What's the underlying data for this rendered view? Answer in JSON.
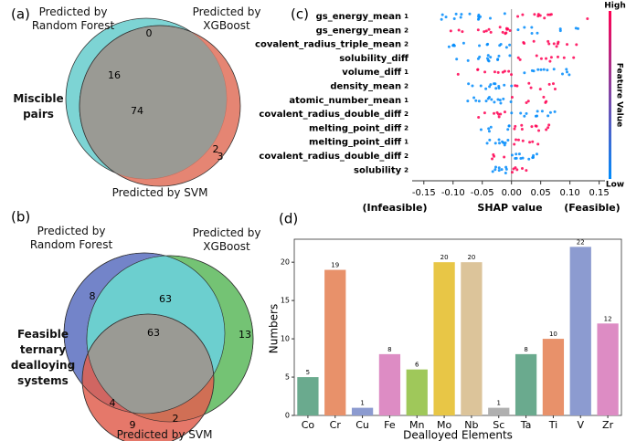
{
  "chart_data": [
    {
      "type": "venn",
      "panel_label": "(a)",
      "sets": [
        "Predicted by Random Forest",
        "Predicted by XGBoost",
        "Predicted by SVM"
      ],
      "subject": "Miscible pairs",
      "counts": [
        0,
        16,
        74,
        2,
        3
      ]
    },
    {
      "type": "venn",
      "panel_label": "(b)",
      "sets": [
        "Predicted by Random Forest",
        "Predicted by XGBoost",
        "Predicted by SVM"
      ],
      "subject": "Feasible ternary dealloying systems",
      "counts": [
        8,
        63,
        13,
        63,
        4,
        2,
        9
      ]
    },
    {
      "type": "beeswarm",
      "panel_label": "(c)",
      "features": [
        "gs_energy_mean",
        "gs_energy_mean",
        "covalent_radius_triple_mean",
        "solubility_diff",
        "volume_diff",
        "density_mean",
        "atomic_number_mean",
        "covalent_radius_double_diff",
        "melting_point_diff",
        "melting_point_diff",
        "covalent_radius_double_diff",
        "solubility"
      ],
      "feature_suffixes": [
        "1",
        "2",
        "2",
        null,
        "1",
        "2",
        "1",
        "2",
        "2",
        "1",
        "2",
        "2"
      ],
      "xlabel": "SHAP value",
      "xlabel_left": "(Infeasible)",
      "xlabel_right": "(Feasible)",
      "xlim": [
        -0.17,
        0.16
      ],
      "xticks": [
        -0.15,
        {
          "value": -0.1,
          "label": "-0.10"
        },
        -0.05,
        {
          "value": 0,
          "label": "0.00"
        },
        0.05,
        {
          "value": 0.1,
          "label": "0.10"
        },
        0.15
      ],
      "colorbar": {
        "title": "Feature Value",
        "high": "High",
        "low": "Low",
        "colors": [
          "#ff0052",
          "#008bfb"
        ]
      }
    },
    {
      "type": "bar",
      "panel_label": "(d)",
      "categories": [
        "Co",
        "Cr",
        "Cu",
        "Fe",
        "Mn",
        "Mo",
        "Nb",
        "Sc",
        "Ta",
        "Ti",
        "V",
        "Zr"
      ],
      "values": [
        5,
        19,
        1,
        8,
        6,
        20,
        20,
        1,
        8,
        10,
        22,
        12
      ],
      "colors": [
        "#6aaa8e",
        "#e8916a",
        "#8c9bd0",
        "#dd8cc4",
        "#9fc85a",
        "#e8c646",
        "#dcc49a",
        "#b0b0b0",
        "#6aaa8e",
        "#e8916a",
        "#8c9bd0",
        "#dd8cc4"
      ],
      "ylabel": "Numbers",
      "xlabel": "Dealloyed Elements",
      "ylim": [
        0,
        23
      ],
      "yticks": [
        0,
        5,
        10,
        15,
        20
      ]
    }
  ]
}
